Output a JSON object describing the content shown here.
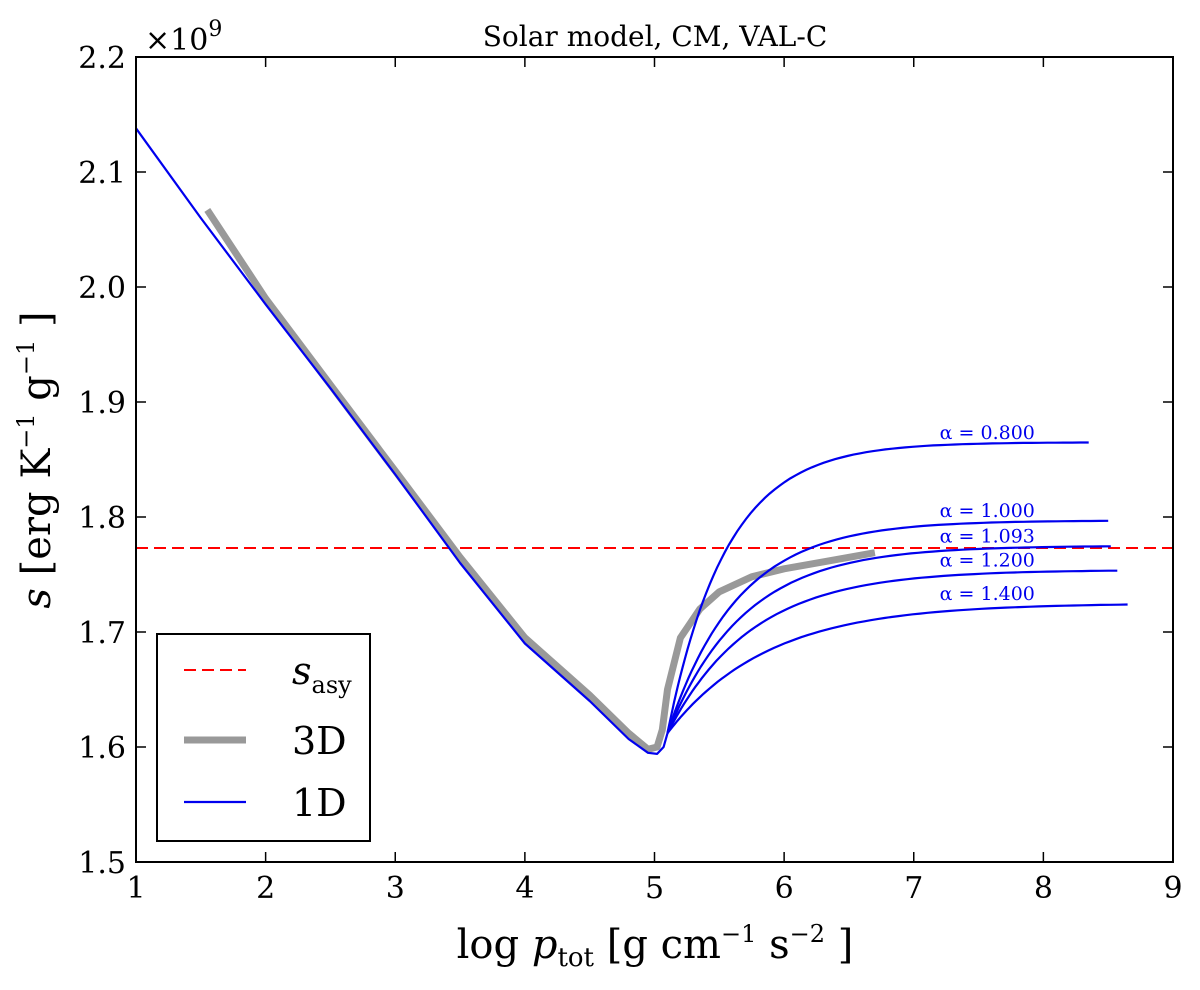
{
  "chart_data": {
    "type": "line",
    "title": "Solar model, CM, VAL-C",
    "xlabel": {
      "prefix": "log ",
      "var": "p",
      "sub": "tot",
      "units": " [g cm",
      "e1": "−1",
      "mid": "  s",
      "e2": "−2",
      "end": " ]"
    },
    "ylabel": {
      "var": "s",
      "units": " [erg K",
      "e1": "−1",
      "mid": "  g",
      "e2": "−1",
      "end": " ]"
    },
    "y_multiplier": {
      "text": "×10",
      "exp": "9"
    },
    "xlim": [
      1,
      9
    ],
    "ylim": [
      1.5,
      2.2
    ],
    "x_ticks": [
      1,
      2,
      3,
      4,
      5,
      6,
      7,
      8,
      9
    ],
    "x_tick_labels": [
      "1",
      "2",
      "3",
      "4",
      "5",
      "6",
      "7",
      "8",
      "9"
    ],
    "y_ticks": [
      1.5,
      1.6,
      1.7,
      1.8,
      1.9,
      2.0,
      2.1,
      2.2
    ],
    "y_tick_labels": [
      "1.5",
      "1.6",
      "1.7",
      "1.8",
      "1.9",
      "2.0",
      "2.1",
      "2.2"
    ],
    "grid": false,
    "legend_position": "lower-left",
    "legend": [
      {
        "label": "s",
        "sub": "asy",
        "style": "dashed",
        "color": "#ff0000"
      },
      {
        "label": "3D",
        "style": "thick",
        "color": "#999999"
      },
      {
        "label": "1D",
        "style": "solid",
        "color": "#0000ee"
      }
    ],
    "s_asy": 1.773,
    "series_3d": {
      "color": "#999999",
      "x": [
        1.55,
        2.0,
        2.5,
        3.0,
        3.5,
        4.0,
        4.5,
        4.8,
        4.95,
        5.02,
        5.06,
        5.1,
        5.2,
        5.35,
        5.5,
        5.75,
        6.0,
        6.3,
        6.7
      ],
      "y": [
        2.067,
        1.99,
        1.915,
        1.84,
        1.765,
        1.695,
        1.645,
        1.612,
        1.598,
        1.6,
        1.615,
        1.65,
        1.695,
        1.72,
        1.735,
        1.748,
        1.755,
        1.761,
        1.769
      ]
    },
    "series_1d_common": {
      "color": "#0000ee",
      "x": [
        1.0,
        1.5,
        2.0,
        2.5,
        3.0,
        3.5,
        4.0,
        4.5,
        4.8,
        4.95,
        5.02,
        5.07,
        5.1
      ],
      "y": [
        2.138,
        2.06,
        1.985,
        1.912,
        1.837,
        1.76,
        1.69,
        1.64,
        1.607,
        1.595,
        1.594,
        1.6,
        1.612
      ]
    },
    "series_1d_branches": [
      {
        "alpha": "α = 0.800",
        "x_end": 8.35,
        "s_inf": 1.865,
        "k": 2.2,
        "label_x": 7.2,
        "label_y": 1.868
      },
      {
        "alpha": "α = 1.000",
        "x_end": 8.5,
        "s_inf": 1.797,
        "k": 1.85,
        "label_x": 7.2,
        "label_y": 1.8
      },
      {
        "alpha": "α = 1.093",
        "x_end": 8.52,
        "s_inf": 1.775,
        "k": 1.7,
        "label_x": 7.2,
        "label_y": 1.778
      },
      {
        "alpha": "α = 1.200",
        "x_end": 8.57,
        "s_inf": 1.754,
        "k": 1.55,
        "label_x": 7.2,
        "label_y": 1.757
      },
      {
        "alpha": "α = 1.400",
        "x_end": 8.65,
        "s_inf": 1.725,
        "k": 1.3,
        "label_x": 7.2,
        "label_y": 1.728
      }
    ]
  }
}
